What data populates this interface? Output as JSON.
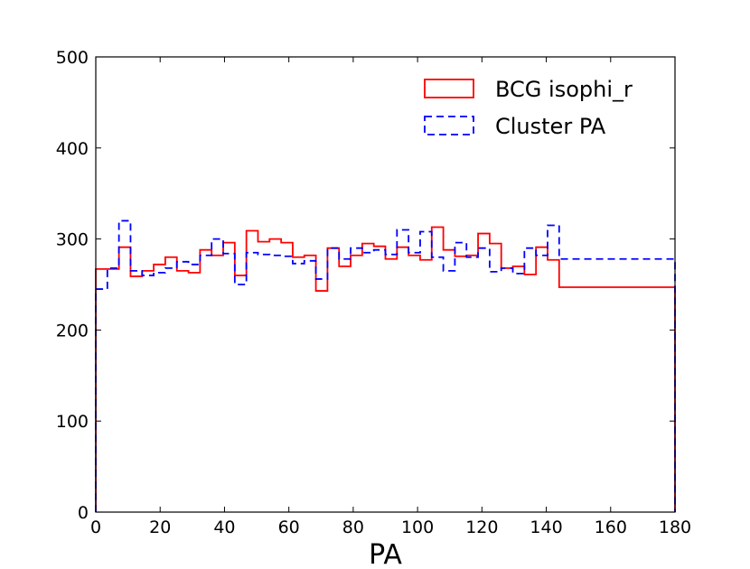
{
  "chart_data": {
    "type": "histogram",
    "title": "",
    "xlabel": "PA",
    "ylabel": "",
    "xlim": [
      0,
      180
    ],
    "ylim": [
      0,
      500
    ],
    "xticks": [
      "0",
      "20",
      "40",
      "60",
      "80",
      "100",
      "120",
      "140",
      "160",
      "180"
    ],
    "yticks": [
      "0",
      "100",
      "200",
      "300",
      "400",
      "500"
    ],
    "grid": false,
    "legend_position": "top-right",
    "bin_edges": [
      0,
      3.6,
      7.2,
      10.8,
      14.4,
      18,
      21.6,
      25.2,
      28.8,
      32.4,
      36,
      39.6,
      43.2,
      46.8,
      50.4,
      54,
      57.6,
      61.2,
      64.8,
      68.4,
      72,
      75.6,
      79.2,
      82.8,
      86.4,
      90,
      93.6,
      97.2,
      100.8,
      104.4,
      108,
      111.6,
      115.2,
      118.8,
      122.4,
      126,
      129.6,
      133.2,
      136.8,
      140.4,
      144,
      147.6,
      151.2,
      154.8,
      158.4,
      162,
      165.6,
      169.2,
      172.8,
      176.4,
      180
    ],
    "series": [
      {
        "name": "BCG isophi_r",
        "color": "#ff0000",
        "style": "solid",
        "values": [
          267,
          267,
          291,
          259,
          265,
          272,
          280,
          265,
          263,
          288,
          282,
          296,
          260,
          309,
          297,
          300,
          296,
          280,
          282,
          243,
          290,
          270,
          282,
          295,
          292,
          278,
          291,
          282,
          277,
          313,
          288,
          281,
          282,
          306,
          295,
          268,
          270,
          261,
          291,
          277,
          247,
          247,
          247,
          247,
          247,
          247,
          247,
          247,
          247,
          247
        ]
      },
      {
        "name": "Cluster PA",
        "color": "#0000ff",
        "style": "dashed",
        "values": [
          245,
          268,
          320,
          265,
          260,
          263,
          268,
          275,
          272,
          282,
          300,
          284,
          250,
          285,
          283,
          282,
          281,
          273,
          276,
          256,
          290,
          278,
          290,
          285,
          288,
          283,
          310,
          285,
          308,
          280,
          265,
          296,
          280,
          290,
          264,
          268,
          262,
          290,
          282,
          315,
          278,
          278,
          278,
          278,
          278,
          278,
          278,
          278,
          278,
          278
        ]
      }
    ]
  }
}
